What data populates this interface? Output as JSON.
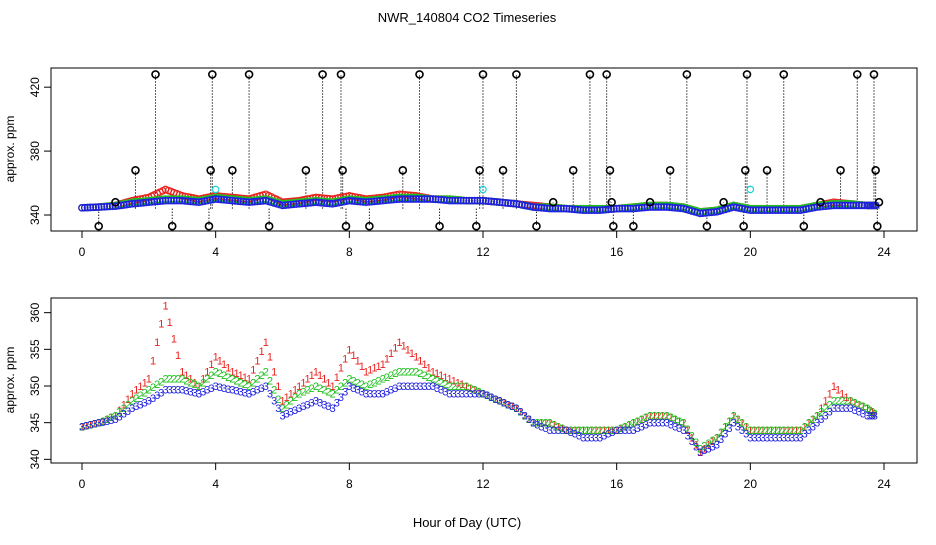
{
  "title": "NWR_140804  CO2 Timeseries",
  "xlabel": "Hour of Day (UTC)",
  "colors": {
    "red": "#e8231f",
    "green": "#20c020",
    "blue": "#1f1fe0",
    "cyan": "#19d4d4",
    "black": "#000000"
  },
  "chart_data": [
    {
      "type": "scatter",
      "ylabel": "approx. ppm",
      "xlim": [
        0,
        24
      ],
      "ylim": [
        330,
        432
      ],
      "xticks": [
        "0",
        "4",
        "8",
        "12",
        "16",
        "20",
        "24"
      ],
      "yticks": [
        "340",
        "380",
        "420"
      ],
      "x": [
        0.0,
        0.5,
        1.0,
        1.5,
        2.0,
        2.5,
        3.0,
        3.5,
        4.0,
        4.5,
        5.0,
        5.5,
        6.0,
        6.5,
        7.0,
        7.5,
        8.0,
        8.5,
        9.0,
        9.5,
        10.0,
        10.5,
        11.0,
        11.5,
        12.0,
        12.5,
        13.0,
        13.5,
        14.0,
        14.5,
        15.0,
        15.5,
        16.0,
        16.5,
        17.0,
        17.5,
        18.0,
        18.5,
        19.0,
        19.5,
        20.0,
        20.5,
        21.0,
        21.5,
        22.0,
        22.5,
        23.0,
        23.5,
        23.8
      ],
      "series": [
        {
          "name": "red",
          "marker": "o",
          "values": [
            344.5,
            345,
            346,
            349,
            351,
            356,
            352,
            350,
            352,
            351,
            350,
            353,
            348,
            349,
            351,
            350,
            352,
            350,
            351,
            353,
            352,
            350,
            350,
            349,
            349,
            348,
            347,
            346,
            345,
            344,
            344,
            344,
            344,
            345,
            346,
            346,
            345,
            342,
            343,
            346,
            344,
            344,
            344,
            344,
            346,
            348,
            347,
            346,
            346
          ]
        },
        {
          "name": "green",
          "marker": "o",
          "values": [
            344.5,
            345,
            346,
            348,
            349,
            350,
            350,
            349,
            351,
            350,
            349,
            350,
            347,
            348,
            349,
            348,
            350,
            349,
            350,
            351,
            351,
            350,
            350,
            349,
            349,
            348,
            347,
            345,
            345,
            344,
            344,
            344,
            344,
            345,
            346,
            346,
            345,
            342,
            343,
            346,
            344,
            344,
            344,
            344,
            346,
            347,
            347,
            346,
            346
          ]
        },
        {
          "name": "blue",
          "marker": "o",
          "values": [
            344.5,
            345,
            345.5,
            347,
            348,
            349,
            349,
            348,
            350,
            349,
            348,
            349,
            346,
            347,
            348,
            347,
            349,
            348,
            349,
            350,
            350,
            350,
            349,
            349,
            349,
            348,
            347,
            345,
            344,
            344,
            343,
            343,
            344,
            344,
            345,
            345,
            344,
            341,
            342,
            345,
            343,
            343,
            343,
            343,
            345,
            346,
            346,
            346,
            346
          ]
        }
      ],
      "outliers": [
        {
          "x": 0.5,
          "y": 333
        },
        {
          "x": 1.0,
          "y": 348
        },
        {
          "x": 1.6,
          "y": 368
        },
        {
          "x": 2.2,
          "y": 428
        },
        {
          "x": 2.7,
          "y": 333
        },
        {
          "x": 3.8,
          "y": 333
        },
        {
          "x": 3.85,
          "y": 368
        },
        {
          "x": 3.9,
          "y": 428
        },
        {
          "x": 4.5,
          "y": 368
        },
        {
          "x": 5.0,
          "y": 428
        },
        {
          "x": 5.6,
          "y": 333
        },
        {
          "x": 6.7,
          "y": 368
        },
        {
          "x": 7.2,
          "y": 428
        },
        {
          "x": 7.75,
          "y": 428
        },
        {
          "x": 7.8,
          "y": 368
        },
        {
          "x": 7.9,
          "y": 333
        },
        {
          "x": 8.6,
          "y": 333
        },
        {
          "x": 9.6,
          "y": 368
        },
        {
          "x": 10.1,
          "y": 428
        },
        {
          "x": 10.7,
          "y": 333
        },
        {
          "x": 11.8,
          "y": 333
        },
        {
          "x": 11.9,
          "y": 368
        },
        {
          "x": 12.0,
          "y": 428
        },
        {
          "x": 12.6,
          "y": 368
        },
        {
          "x": 13.0,
          "y": 428
        },
        {
          "x": 13.6,
          "y": 333
        },
        {
          "x": 14.1,
          "y": 348
        },
        {
          "x": 14.7,
          "y": 368
        },
        {
          "x": 15.2,
          "y": 428
        },
        {
          "x": 15.7,
          "y": 428
        },
        {
          "x": 15.8,
          "y": 368
        },
        {
          "x": 15.85,
          "y": 348
        },
        {
          "x": 15.9,
          "y": 333
        },
        {
          "x": 16.5,
          "y": 333
        },
        {
          "x": 17.0,
          "y": 348
        },
        {
          "x": 17.6,
          "y": 368
        },
        {
          "x": 18.1,
          "y": 428
        },
        {
          "x": 18.7,
          "y": 333
        },
        {
          "x": 19.2,
          "y": 348
        },
        {
          "x": 19.8,
          "y": 333
        },
        {
          "x": 19.85,
          "y": 368
        },
        {
          "x": 19.9,
          "y": 428
        },
        {
          "x": 20.5,
          "y": 368
        },
        {
          "x": 21.0,
          "y": 428
        },
        {
          "x": 21.6,
          "y": 333
        },
        {
          "x": 22.1,
          "y": 348
        },
        {
          "x": 22.7,
          "y": 368
        },
        {
          "x": 23.2,
          "y": 428
        },
        {
          "x": 23.7,
          "y": 428
        },
        {
          "x": 23.75,
          "y": 368
        },
        {
          "x": 23.8,
          "y": 333
        },
        {
          "x": 23.85,
          "y": 348
        }
      ],
      "cyan_points": [
        {
          "x": 4.0,
          "y": 356
        },
        {
          "x": 12.0,
          "y": 356
        },
        {
          "x": 20.0,
          "y": 356
        }
      ]
    },
    {
      "type": "scatter",
      "ylabel": "approx. ppm",
      "xlim": [
        0,
        24
      ],
      "ylim": [
        339.5,
        362
      ],
      "xticks": [
        "0",
        "4",
        "8",
        "12",
        "16",
        "20",
        "24"
      ],
      "yticks": [
        "340",
        "345",
        "350",
        "355",
        "360"
      ],
      "x": [
        0.0,
        0.5,
        1.0,
        1.5,
        2.0,
        2.5,
        3.0,
        3.5,
        4.0,
        4.5,
        5.0,
        5.5,
        6.0,
        6.5,
        7.0,
        7.5,
        8.0,
        8.5,
        9.0,
        9.5,
        10.0,
        10.5,
        11.0,
        11.5,
        12.0,
        12.5,
        13.0,
        13.5,
        14.0,
        14.5,
        15.0,
        15.5,
        16.0,
        16.5,
        17.0,
        17.5,
        18.0,
        18.5,
        19.0,
        19.5,
        20.0,
        20.5,
        21.0,
        21.5,
        22.0,
        22.5,
        23.0,
        23.5,
        23.8
      ],
      "series": [
        {
          "name": "1",
          "label": "1",
          "color": "red",
          "values": [
            344.5,
            345,
            346,
            349,
            351,
            361,
            352,
            350,
            354,
            352,
            351,
            356,
            348,
            350,
            352,
            350,
            355,
            352,
            353,
            356,
            354,
            352,
            351,
            350,
            349,
            348,
            347,
            345,
            345,
            344,
            344,
            344,
            344,
            345,
            346,
            346,
            345,
            341,
            343,
            346,
            344,
            344,
            344,
            344,
            346,
            350,
            348,
            347,
            346
          ]
        },
        {
          "name": "2",
          "label": "2",
          "color": "green",
          "values": [
            344.5,
            345,
            346,
            348,
            349.5,
            351,
            351,
            350,
            352,
            351,
            350,
            352,
            347,
            349,
            350,
            349,
            351,
            350,
            351,
            352,
            352,
            351,
            350,
            350,
            349,
            348,
            347,
            345,
            345,
            344,
            344,
            344,
            344,
            345,
            346,
            346,
            345,
            341.5,
            343,
            346,
            344,
            344,
            344,
            344,
            346,
            348,
            348,
            347,
            346
          ]
        },
        {
          "name": "3",
          "label": "3",
          "color": "blue",
          "values": [
            344.5,
            345,
            345.5,
            347,
            348,
            349.5,
            349.5,
            349,
            350,
            349.5,
            349,
            350,
            346,
            347,
            348,
            347,
            350,
            349,
            349,
            350,
            350,
            350,
            349,
            349,
            349,
            348,
            347,
            345,
            344,
            344,
            343,
            343,
            344,
            344,
            345,
            345,
            344,
            341,
            342,
            345,
            343,
            343,
            343,
            343,
            345,
            347,
            347,
            346,
            346
          ]
        }
      ]
    }
  ]
}
